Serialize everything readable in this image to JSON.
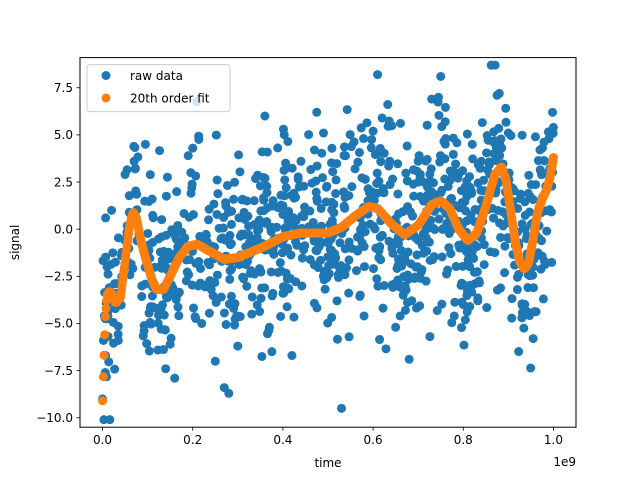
{
  "chart_data": {
    "type": "scatter",
    "title": "",
    "xlabel": "time",
    "ylabel": "signal",
    "x_offset_label": "1e9",
    "xlim": [
      -0.05,
      1.05
    ],
    "ylim": [
      -10.5,
      9.1
    ],
    "x_ticks": [
      0.0,
      0.2,
      0.4,
      0.6,
      0.8,
      1.0
    ],
    "x_tick_labels": [
      "0.0",
      "0.2",
      "0.4",
      "0.6",
      "0.8",
      "1.0"
    ],
    "y_ticks": [
      -10.0,
      -7.5,
      -5.0,
      -2.5,
      0.0,
      2.5,
      5.0,
      7.5
    ],
    "y_tick_labels": [
      "−10.0",
      "−7.5",
      "−5.0",
      "−2.5",
      "0.0",
      "2.5",
      "5.0",
      "7.5"
    ],
    "grid": false,
    "legend_position": "top-left",
    "x_unit_multiplier": 1000000000,
    "series": [
      {
        "name": "raw data",
        "color": "#1f77b4",
        "marker": "circle",
        "noise_spread": 2.4,
        "points": [
          [
            0.0,
            -9.0
          ],
          [
            0.002,
            -5.9
          ],
          [
            0.004,
            -4.6
          ],
          [
            0.006,
            -7.6
          ],
          [
            0.008,
            -3.9
          ],
          [
            0.01,
            -2.0
          ],
          [
            0.012,
            -4.6
          ],
          [
            0.015,
            -3.1
          ],
          [
            0.02,
            1.0
          ],
          [
            0.028,
            -3.4
          ],
          [
            0.035,
            -5.9
          ],
          [
            0.04,
            -4.0
          ],
          [
            0.05,
            2.9
          ],
          [
            0.058,
            -1.0
          ],
          [
            0.07,
            3.6
          ],
          [
            0.095,
            4.5
          ],
          [
            0.11,
            1.6
          ],
          [
            0.12,
            -4.2
          ],
          [
            0.13,
            -5.3
          ],
          [
            0.14,
            -7.4
          ],
          [
            0.15,
            -6.1
          ],
          [
            0.16,
            -7.9
          ],
          [
            0.19,
            3.9
          ],
          [
            0.2,
            4.3
          ],
          [
            0.22,
            -5.0
          ],
          [
            0.25,
            -7.0
          ],
          [
            0.27,
            -8.4
          ],
          [
            0.28,
            -8.7
          ],
          [
            0.3,
            -6.2
          ],
          [
            0.32,
            1.5
          ],
          [
            0.35,
            2.3
          ],
          [
            0.36,
            6.0
          ],
          [
            0.37,
            -5.2
          ],
          [
            0.4,
            -3.4
          ],
          [
            0.42,
            -6.7
          ],
          [
            0.44,
            3.6
          ],
          [
            0.47,
            4.2
          ],
          [
            0.475,
            6.2
          ],
          [
            0.49,
            5.1
          ],
          [
            0.52,
            -3.8
          ],
          [
            0.53,
            -9.5
          ],
          [
            0.56,
            3.2
          ],
          [
            0.58,
            -4.6
          ],
          [
            0.6,
            5.2
          ],
          [
            0.61,
            8.2
          ],
          [
            0.62,
            5.9
          ],
          [
            0.65,
            -5.2
          ],
          [
            0.66,
            -4.6
          ],
          [
            0.68,
            -6.9
          ],
          [
            0.7,
            3.6
          ],
          [
            0.72,
            3.7
          ],
          [
            0.73,
            6.9
          ],
          [
            0.745,
            7.0
          ],
          [
            0.75,
            8.1
          ],
          [
            0.76,
            5.7
          ],
          [
            0.78,
            -4.6
          ],
          [
            0.8,
            -4.0
          ],
          [
            0.82,
            4.5
          ],
          [
            0.84,
            3.6
          ],
          [
            0.87,
            4.7
          ],
          [
            0.875,
            7.1
          ],
          [
            0.88,
            7.2
          ],
          [
            0.9,
            5.1
          ],
          [
            0.92,
            -3.2
          ],
          [
            0.93,
            -4.7
          ],
          [
            0.955,
            -5.8
          ],
          [
            0.96,
            4.9
          ],
          [
            0.97,
            4.2
          ],
          [
            0.99,
            4.8
          ],
          [
            1.0,
            5.4
          ]
        ]
      },
      {
        "name": "20th order fit",
        "color": "#ff7f0e",
        "marker": "circle",
        "curve": [
          [
            0.0,
            -9.1
          ],
          [
            0.003,
            -6.9
          ],
          [
            0.006,
            -4.7
          ],
          [
            0.01,
            -3.5
          ],
          [
            0.015,
            -3.3
          ],
          [
            0.02,
            -3.4
          ],
          [
            0.025,
            -3.6
          ],
          [
            0.03,
            -3.9
          ],
          [
            0.04,
            -3.6
          ],
          [
            0.05,
            -1.7
          ],
          [
            0.06,
            0.2
          ],
          [
            0.068,
            0.9
          ],
          [
            0.075,
            0.6
          ],
          [
            0.085,
            -0.6
          ],
          [
            0.095,
            -1.5
          ],
          [
            0.11,
            -2.7
          ],
          [
            0.12,
            -3.2
          ],
          [
            0.135,
            -3.2
          ],
          [
            0.15,
            -2.5
          ],
          [
            0.17,
            -1.5
          ],
          [
            0.19,
            -0.9
          ],
          [
            0.21,
            -0.8
          ],
          [
            0.24,
            -1.2
          ],
          [
            0.27,
            -1.6
          ],
          [
            0.3,
            -1.5
          ],
          [
            0.33,
            -1.2
          ],
          [
            0.36,
            -0.9
          ],
          [
            0.4,
            -0.4
          ],
          [
            0.44,
            -0.2
          ],
          [
            0.47,
            -0.2
          ],
          [
            0.5,
            -0.2
          ],
          [
            0.53,
            0.1
          ],
          [
            0.56,
            0.7
          ],
          [
            0.59,
            1.2
          ],
          [
            0.61,
            1.1
          ],
          [
            0.64,
            0.3
          ],
          [
            0.67,
            -0.3
          ],
          [
            0.7,
            0.2
          ],
          [
            0.73,
            1.3
          ],
          [
            0.75,
            1.5
          ],
          [
            0.77,
            1.1
          ],
          [
            0.79,
            0.0
          ],
          [
            0.81,
            -0.6
          ],
          [
            0.83,
            -0.2
          ],
          [
            0.85,
            1.2
          ],
          [
            0.87,
            2.9
          ],
          [
            0.885,
            3.3
          ],
          [
            0.895,
            2.6
          ],
          [
            0.905,
            1.0
          ],
          [
            0.915,
            -0.6
          ],
          [
            0.925,
            -1.7
          ],
          [
            0.935,
            -2.1
          ],
          [
            0.945,
            -1.8
          ],
          [
            0.955,
            -0.5
          ],
          [
            0.965,
            0.9
          ],
          [
            0.975,
            1.6
          ],
          [
            0.985,
            2.1
          ],
          [
            0.993,
            2.8
          ],
          [
            1.0,
            3.8
          ]
        ]
      }
    ]
  }
}
